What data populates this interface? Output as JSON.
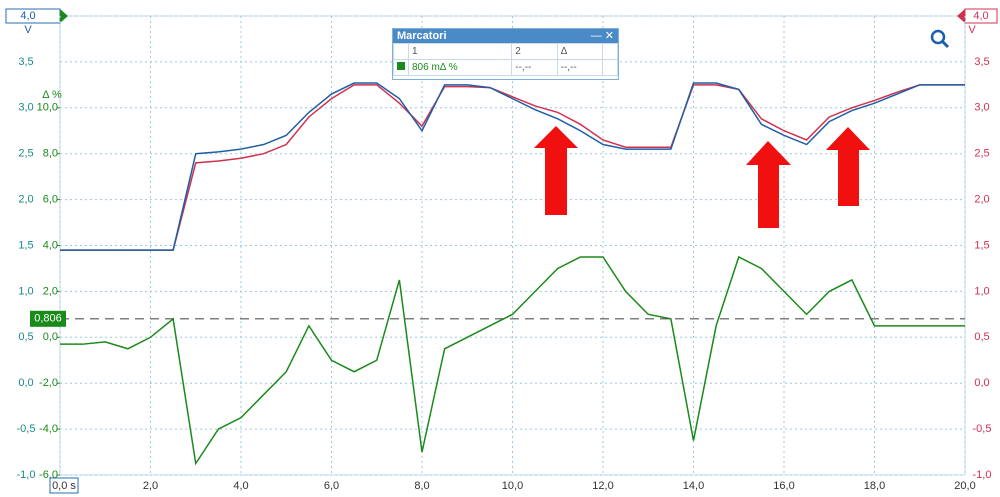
{
  "chart_data": {
    "type": "line",
    "x": [
      0,
      0.5,
      1,
      1.5,
      2,
      2.5,
      3,
      3.5,
      4,
      4.5,
      5,
      5.5,
      6,
      6.5,
      7,
      7.5,
      8,
      8.5,
      9,
      9.5,
      10,
      10.5,
      11,
      11.5,
      12,
      12.5,
      13,
      13.5,
      14,
      14.5,
      15,
      15.5,
      16,
      16.5,
      17,
      17.5,
      18,
      18.5,
      19,
      19.5,
      20
    ],
    "xlim": [
      0,
      20
    ],
    "xticks": [
      {
        "value": 0,
        "label": "0,0 s"
      },
      {
        "value": 2,
        "label": "2,0"
      },
      {
        "value": 4,
        "label": "4,0"
      },
      {
        "value": 6,
        "label": "6,0"
      },
      {
        "value": 8,
        "label": "8,0"
      },
      {
        "value": 10,
        "label": "10,0"
      },
      {
        "value": 12,
        "label": "12,0"
      },
      {
        "value": 14,
        "label": "14,0"
      },
      {
        "value": 16,
        "label": "16,0"
      },
      {
        "value": 18,
        "label": "18,0"
      },
      {
        "value": 20,
        "label": "20,0"
      }
    ],
    "y_unit": "V",
    "ylim": [
      -1,
      4
    ],
    "yticks": [
      {
        "value": -1,
        "label": "-1,0"
      },
      {
        "value": -0.5,
        "label": "-0,5"
      },
      {
        "value": 0,
        "label": "0,0"
      },
      {
        "value": 0.5,
        "label": "0,5"
      },
      {
        "value": 1,
        "label": "1,0"
      },
      {
        "value": 1.5,
        "label": "1,5"
      },
      {
        "value": 2,
        "label": "2,0"
      },
      {
        "value": 2.5,
        "label": "2,5"
      },
      {
        "value": 3,
        "label": "3,0"
      },
      {
        "value": 3.5,
        "label": "3,5"
      },
      {
        "value": 4,
        "label": "4,0"
      }
    ],
    "y2_unit": "Δ %",
    "y2lim": [
      -6,
      14
    ],
    "y2ticks": [
      {
        "value": -6,
        "label": "-6,0"
      },
      {
        "value": -4,
        "label": "-4,0"
      },
      {
        "value": -2,
        "label": "-2,0"
      },
      {
        "value": 0,
        "label": "0,0"
      },
      {
        "value": 2,
        "label": "2,0"
      },
      {
        "value": 4,
        "label": "4,0"
      },
      {
        "value": 6,
        "label": "6,0"
      },
      {
        "value": 8,
        "label": "8,0"
      },
      {
        "value": 10,
        "label": "10,0"
      }
    ],
    "grid": true,
    "series": [
      {
        "color": "#1f5fa6",
        "values": [
          1.45,
          1.45,
          1.45,
          1.45,
          1.45,
          1.45,
          2.5,
          2.52,
          2.55,
          2.6,
          2.7,
          2.95,
          3.15,
          3.27,
          3.27,
          3.1,
          2.75,
          3.25,
          3.25,
          3.22,
          3.1,
          2.98,
          2.88,
          2.75,
          2.6,
          2.55,
          2.55,
          2.55,
          3.27,
          3.27,
          3.2,
          2.82,
          2.7,
          2.6,
          2.85,
          2.97,
          3.05,
          3.15,
          3.25,
          3.25,
          3.25
        ]
      },
      {
        "color": "#d0314f",
        "values": [
          1.45,
          1.45,
          1.45,
          1.45,
          1.45,
          1.45,
          2.4,
          2.42,
          2.45,
          2.5,
          2.6,
          2.9,
          3.1,
          3.25,
          3.25,
          3.05,
          2.8,
          3.23,
          3.23,
          3.22,
          3.12,
          3.02,
          2.95,
          2.82,
          2.65,
          2.57,
          2.57,
          2.57,
          3.25,
          3.25,
          3.2,
          2.88,
          2.75,
          2.65,
          2.9,
          3.0,
          3.08,
          3.17,
          3.25,
          3.25,
          3.25
        ]
      },
      {
        "color": "#1a8a1a",
        "axis": "y2",
        "values": [
          -0.3,
          -0.3,
          -0.2,
          -0.5,
          0,
          0.8,
          -5.5,
          -4,
          -3.5,
          -2.5,
          -1.5,
          0.5,
          -1,
          -1.5,
          -1,
          2.5,
          -5,
          -0.5,
          0,
          0.5,
          1,
          2,
          3,
          3.5,
          3.5,
          2,
          1,
          0.8,
          -4.5,
          0.5,
          3.5,
          3,
          2,
          1,
          2,
          2.5,
          0.5,
          0.5,
          0.5,
          0.5,
          0.5
        ]
      }
    ],
    "marker": {
      "value": 0.806,
      "label": "0,806",
      "axis": "y2"
    }
  },
  "panel": {
    "title": "Marcatori",
    "columns": [
      "1",
      "2",
      "Δ"
    ],
    "row": {
      "label": "806 mΔ %",
      "values": [
        "--,--",
        "--,--"
      ]
    }
  }
}
